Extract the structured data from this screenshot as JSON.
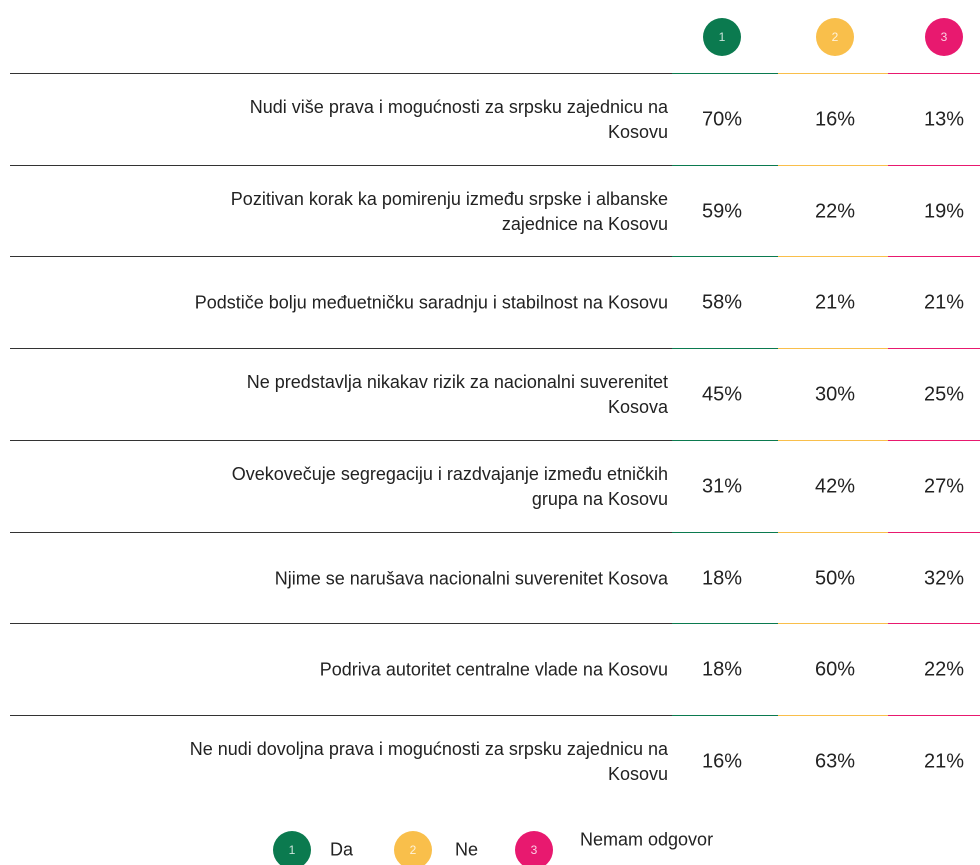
{
  "columns": [
    {
      "number": "1",
      "color": "#0b7a4f"
    },
    {
      "number": "2",
      "color": "#f9bf4b"
    },
    {
      "number": "3",
      "color": "#e8196f"
    }
  ],
  "rows": [
    {
      "label": "Nudi više prava i mogućnosti za srpsku zajednicu na Kosovu",
      "values": [
        "70%",
        "16%",
        "13%"
      ]
    },
    {
      "label": "Pozitivan korak ka pomirenju između srpske i albanske zajednice na Kosovu",
      "values": [
        "59%",
        "22%",
        "19%"
      ]
    },
    {
      "label": "Podstiče bolju međuetničku saradnju i stabilnost na Kosovu",
      "values": [
        "58%",
        "21%",
        "21%"
      ]
    },
    {
      "label": "Ne predstavlja nikakav rizik za nacionalni suverenitet Kosova",
      "values": [
        "45%",
        "30%",
        "25%"
      ]
    },
    {
      "label": "Ovekovečuje segregaciju i razdvajanje između etničkih grupa na Kosovu",
      "values": [
        "31%",
        "42%",
        "27%"
      ]
    },
    {
      "label": "Njime se narušava nacionalni suverenitet Kosova",
      "values": [
        "18%",
        "50%",
        "32%"
      ]
    },
    {
      "label": "Podriva autoritet centralne vlade na Kosovu",
      "values": [
        "18%",
        "60%",
        "22%"
      ]
    },
    {
      "label": "Ne nudi dovoljna prava i mogućnosti za srpsku zajednicu na Kosovu",
      "values": [
        "16%",
        "63%",
        "21%"
      ]
    }
  ],
  "legend": [
    {
      "number": "1",
      "label": "Da"
    },
    {
      "number": "2",
      "label": "Ne"
    },
    {
      "number": "3",
      "label": "Nemam odgovor"
    }
  ]
}
